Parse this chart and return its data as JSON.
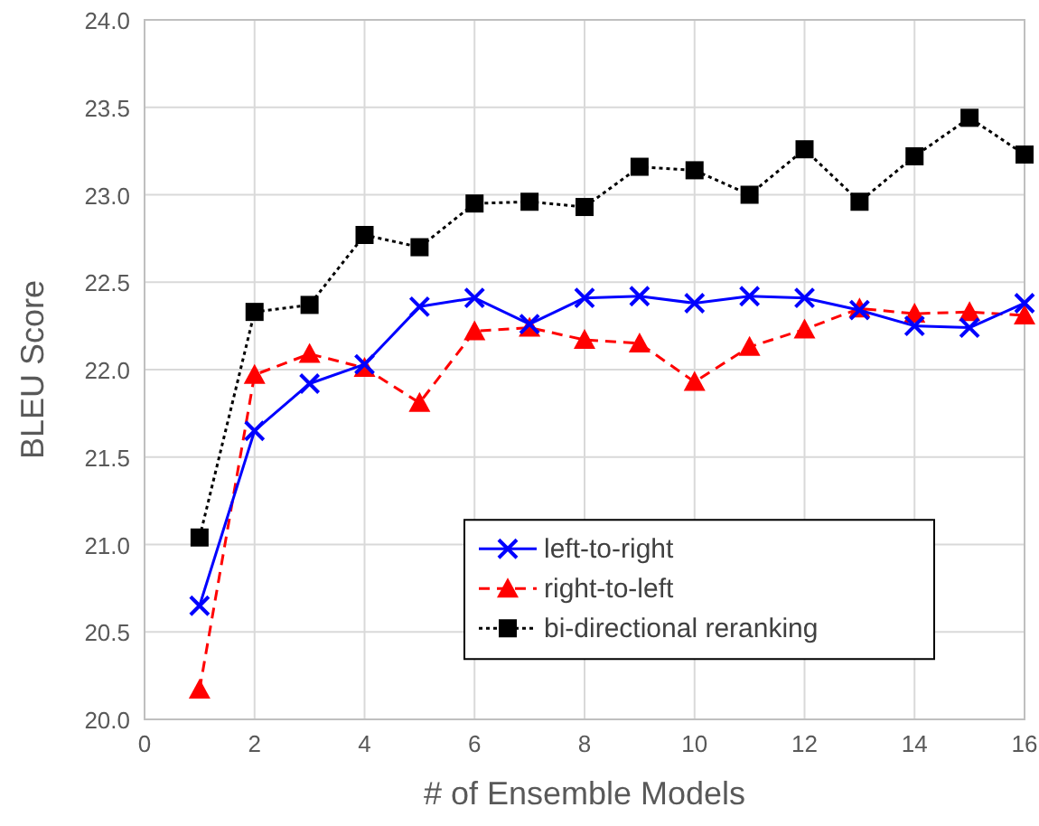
{
  "chart_data": {
    "type": "line",
    "xlabel": "# of Ensemble Models",
    "ylabel": "BLEU Score",
    "x": [
      1,
      2,
      3,
      4,
      5,
      6,
      7,
      8,
      9,
      10,
      11,
      12,
      13,
      14,
      15,
      16
    ],
    "series": [
      {
        "name": "left-to-right",
        "color": "#0000ff",
        "marker": "cross",
        "line_style": "solid",
        "values": [
          20.65,
          21.65,
          21.92,
          22.03,
          22.36,
          22.41,
          22.26,
          22.41,
          22.42,
          22.38,
          22.42,
          22.41,
          22.34,
          22.25,
          22.24,
          22.38
        ]
      },
      {
        "name": "right-to-left",
        "color": "#ff0000",
        "marker": "triangle",
        "line_style": "dashed",
        "values": [
          20.17,
          21.97,
          22.09,
          22.01,
          21.81,
          22.22,
          22.24,
          22.17,
          22.15,
          21.93,
          22.13,
          22.23,
          22.35,
          22.32,
          22.33,
          22.31
        ]
      },
      {
        "name": "bi-directional reranking",
        "color": "#000000",
        "marker": "square",
        "line_style": "dotted",
        "values": [
          21.04,
          22.33,
          22.37,
          22.77,
          22.7,
          22.95,
          22.96,
          22.93,
          23.16,
          23.14,
          23.0,
          23.26,
          22.96,
          23.22,
          23.44,
          23.23
        ]
      }
    ],
    "xlim": [
      0,
      16
    ],
    "xticks": [
      0,
      2,
      4,
      6,
      8,
      10,
      12,
      14,
      16
    ],
    "ylim": [
      20,
      24
    ],
    "yticks": [
      {
        "value": 20,
        "label": "20.0"
      },
      {
        "value": 20.5,
        "label": "20.5"
      },
      {
        "value": 21,
        "label": "21.0"
      },
      {
        "value": 21.5,
        "label": "21.5"
      },
      {
        "value": 22,
        "label": "22.0"
      },
      {
        "value": 22.5,
        "label": "22.5"
      },
      {
        "value": 23,
        "label": "23.0"
      },
      {
        "value": 23.5,
        "label": "23.5"
      },
      {
        "value": 24,
        "label": "24.0"
      }
    ],
    "grid": true,
    "legend": "bottom right"
  }
}
